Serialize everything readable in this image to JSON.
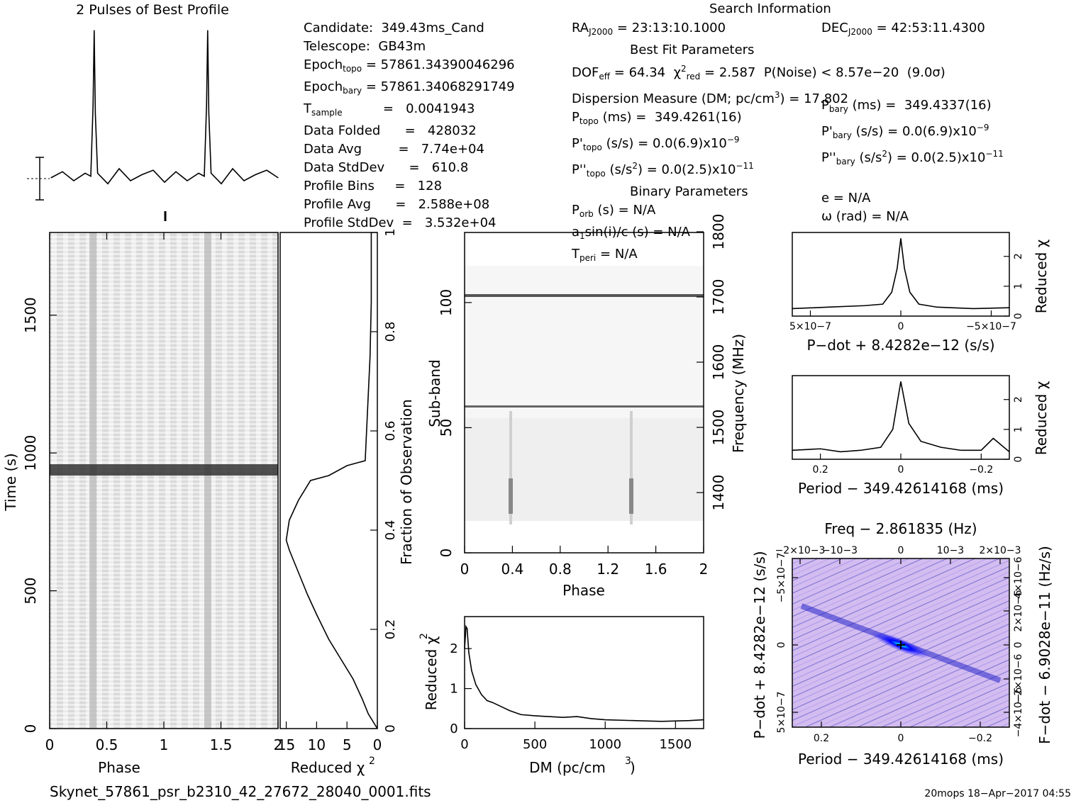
{
  "titles": {
    "profile": "2 Pulses of Best Profile",
    "search": "Search Information",
    "best_fit": "Best Fit Parameters",
    "binary": "Binary Parameters"
  },
  "info": {
    "candidate": "Candidate:  349.43ms_Cand",
    "telescope": "Telescope:  GB43m",
    "epoch_topo_val": "= 57861.34390046296",
    "epoch_bary_val": "= 57861.34068291749",
    "tsample_val": "=   0.0041943",
    "data_folded": "Data Folded      =   428032",
    "data_avg": "Data Avg         =   7.74e+04",
    "data_stddev": "Data StdDev      =   610.8",
    "profile_bins": "Profile Bins     =   128",
    "profile_avg": "Profile Avg      =   2.588e+08",
    "profile_stddev": "Profile StdDev  =   3.532e+04",
    "ra": "= 23:13:10.1000",
    "dec": "= 42:53:11.4300",
    "dof": "= 64.34",
    "chi2red": "= 2.587",
    "pnoise": "P(Noise) < 8.57e−20  (9.0σ)",
    "dm": "Dispersion Measure (DM; pc/cm",
    "dm_val": ") = 17.802",
    "ptopo": "(ms) =  349.4261(16)",
    "pbary": "(ms) =  349.4337(16)",
    "pdtopo": "(s/s) = 0.0(6.9)x10",
    "pdbary": "(s/s) = 0.0(6.9)x10",
    "pddtopo": "(s/s",
    "pddbary": "(s/s",
    "pdd_val": ") = 0.0(2.5)x10",
    "porb": "(s) = N/A",
    "e": "e = N/A",
    "asini": "sin(i)/c (s) = N/A",
    "omega": "ω (rad) = N/A",
    "tperi": "= N/A"
  },
  "axes": {
    "phase": "Phase",
    "time": "Time (s)",
    "reduced_chi2": "Reduced χ",
    "fraction": "Fraction of Observation",
    "subband": "Sub-band",
    "frequency": "Frequency (MHz)",
    "dm": "DM (pc/cm",
    "pdot": "P−dot + 8.4282e−12 (s/s)",
    "period": "Period − 349.42614168 (ms)",
    "freq": "Freq − 2.861835 (Hz)",
    "pdot2": "P−dot + 8.4282e−12 (s/s)",
    "fdot": "F−dot − 6.9028e−11 (Hz/s)"
  },
  "footer": {
    "filename": "Skynet_57861_psr_b2310_42_27672_28040_0001.fits",
    "stamp": "20mops 18−Apr−2017 04:55"
  },
  "colors": {
    "grey": "#888888",
    "blue": "#3a3aff",
    "pink": "#f3d6f3",
    "cyan": "#00ffff"
  },
  "chart_data": [
    {
      "type": "line",
      "name": "profile",
      "x_phase": [
        0.0,
        0.1,
        0.2,
        0.3,
        0.35,
        0.37,
        0.38,
        0.39,
        0.41,
        0.5,
        0.6,
        0.7,
        0.8,
        0.9,
        1.0,
        1.1,
        1.2,
        1.3,
        1.35,
        1.37,
        1.38,
        1.39,
        1.41,
        1.5,
        1.6,
        1.7,
        1.8,
        1.9,
        2.0
      ],
      "y_rel": [
        0.02,
        0.06,
        0.0,
        0.05,
        0.03,
        0.5,
        1.0,
        0.45,
        0.05,
        -0.02,
        0.08,
        0.0,
        0.04,
        0.07,
        -0.01,
        0.06,
        0.0,
        0.05,
        0.03,
        0.5,
        1.0,
        0.45,
        0.05,
        -0.02,
        0.08,
        0.0,
        0.04,
        0.07,
        0.02
      ]
    },
    {
      "type": "heatmap",
      "name": "time-phase",
      "xlabel": "Phase",
      "ylabel": "Time (s)",
      "xlim": [
        0,
        2
      ],
      "ylim": [
        0,
        1800
      ],
      "xticks": [
        "0",
        "0.5",
        "1",
        "1.5",
        "2"
      ],
      "yticks": [
        "0",
        "500",
        "1000",
        "1500"
      ],
      "pulse_phases": [
        0.38,
        1.38
      ],
      "bright_time_s": 930
    },
    {
      "type": "line",
      "name": "reduced-chi2-vs-fraction",
      "xlabel": "Reduced χ2",
      "ylabel": "Fraction of Observation",
      "xlim": [
        16,
        0
      ],
      "ylim": [
        0,
        1
      ],
      "xticks": [
        "15",
        "10",
        "5",
        "0"
      ],
      "yticks": [
        "0",
        "0.2",
        "0.4",
        "0.6",
        "0.8",
        "1"
      ],
      "x": [
        0.0,
        0.5,
        1.5,
        2.5,
        4,
        6,
        8,
        10,
        11.5,
        12.5,
        13.5,
        14.5,
        15,
        14.5,
        13,
        11,
        8,
        5,
        2,
        1.2,
        1.0,
        1.0
      ],
      "y": [
        0.0,
        0.01,
        0.03,
        0.06,
        0.1,
        0.14,
        0.18,
        0.23,
        0.27,
        0.3,
        0.33,
        0.36,
        0.38,
        0.42,
        0.46,
        0.5,
        0.51,
        0.53,
        0.54,
        0.75,
        0.86,
        1.0
      ]
    },
    {
      "type": "heatmap",
      "name": "subband-phase",
      "xlabel": "Phase",
      "ylabel": "Sub-band",
      "xlim": [
        0,
        2
      ],
      "ylim": [
        0,
        128
      ],
      "xticks": [
        "0",
        "0.4",
        "0.8",
        "1.2",
        "1.6",
        "2"
      ],
      "yticks": [
        "0",
        "50",
        "100"
      ],
      "freq_ticks": [
        "1400",
        "1500",
        "1600",
        "1700",
        "1800"
      ],
      "rfi_subbands": [
        58,
        103
      ]
    },
    {
      "type": "line",
      "name": "chi2-vs-dm",
      "xlabel": "DM (pc/cm3)",
      "ylabel": "Reduced χ2",
      "xlim": [
        0,
        1700
      ],
      "ylim": [
        0,
        2.8
      ],
      "xticks": [
        "0",
        "500",
        "1000",
        "1500"
      ],
      "yticks": [
        "0",
        "1",
        "2"
      ],
      "x": [
        0,
        10,
        18,
        30,
        50,
        80,
        120,
        160,
        200,
        260,
        320,
        400,
        500,
        600,
        700,
        800,
        900,
        1000,
        1200,
        1400,
        1600,
        1700
      ],
      "y": [
        2.0,
        2.55,
        2.5,
        1.9,
        1.45,
        1.1,
        0.85,
        0.7,
        0.65,
        0.55,
        0.45,
        0.35,
        0.32,
        0.3,
        0.28,
        0.3,
        0.25,
        0.22,
        0.2,
        0.18,
        0.2,
        0.22
      ]
    },
    {
      "type": "line",
      "name": "chi2-vs-pdot",
      "xlabel": "P−dot + 8.4282e−12 (s/s)",
      "ylabel": "Reduced χ2",
      "xlim": [
        6e-07,
        -6e-07
      ],
      "ylim": [
        0,
        2.8
      ],
      "xticks": [
        "5×10−7",
        "0",
        "−5×10−7"
      ],
      "yticks": [
        "0",
        "1",
        "2"
      ],
      "x": [
        6e-07,
        4e-07,
        2e-07,
        1e-07,
        5e-08,
        2e-08,
        0,
        -2e-08,
        -5e-08,
        -1e-07,
        -2e-07,
        -4e-07,
        -6e-07
      ],
      "y": [
        0.25,
        0.3,
        0.35,
        0.4,
        0.8,
        1.6,
        2.6,
        1.6,
        0.8,
        0.4,
        0.3,
        0.25,
        0.28
      ]
    },
    {
      "type": "line",
      "name": "chi2-vs-period",
      "xlabel": "Period − 349.42614168 (ms)",
      "ylabel": "Reduced χ2",
      "xlim": [
        0.27,
        -0.27
      ],
      "ylim": [
        0,
        2.8
      ],
      "xticks": [
        "0.2",
        "0",
        "−0.2"
      ],
      "yticks": [
        "0",
        "1",
        "2"
      ],
      "x": [
        0.27,
        0.2,
        0.15,
        0.1,
        0.05,
        0.02,
        0.0,
        -0.02,
        -0.05,
        -0.1,
        -0.15,
        -0.2,
        -0.23,
        -0.27
      ],
      "y": [
        0.3,
        0.35,
        0.25,
        0.3,
        0.4,
        1.0,
        2.6,
        1.2,
        0.6,
        0.4,
        0.3,
        0.3,
        0.7,
        0.25
      ]
    },
    {
      "type": "heatmap",
      "name": "period-pdot",
      "xlabel": "Period − 349.42614168 (ms)",
      "ylabel": "P−dot + 8.4282e−12 (s/s)",
      "xticks": [
        "0.2",
        "0",
        "−0.2"
      ],
      "yticks": [
        "−5×10−7",
        "0",
        "5×10−7"
      ],
      "top_ticks": [
        "−2×10−3",
        "−10−3",
        "0",
        "10−3",
        "2×10−3"
      ],
      "right_ticks": [
        "4×10−6",
        "2×10−6",
        "0",
        "−2×10−6",
        "−4×10−6"
      ]
    }
  ]
}
